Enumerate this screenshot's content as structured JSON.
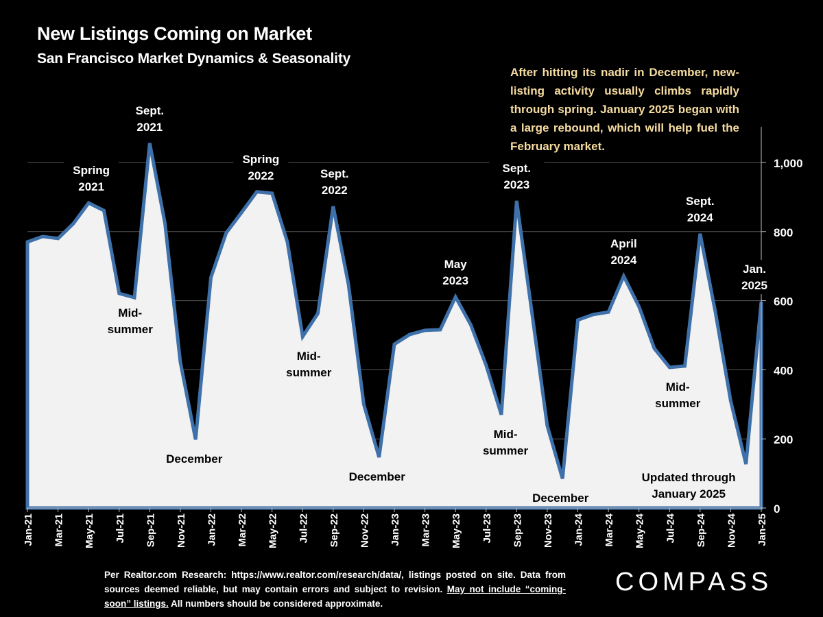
{
  "header": {
    "title": "New Listings Coming on Market",
    "subtitle": "San Francisco Market Dynamics & Seasonality"
  },
  "note": "After hitting its nadir in December, new-listing activity usually climbs rapidly through spring. January 2025 began with a large rebound, which will help fuel the February market.",
  "footnote": {
    "text1": "Per Realtor.com Research:  https://www.realtor.com/research/data/, listings posted on site. Data from sources deemed reliable, but may contain errors and subject to revision. ",
    "underlined": "May not include “coming-soon” listings.",
    "text2": " All numbers should be considered approximate."
  },
  "logo": "COMPASS",
  "colors": {
    "background": "#000000",
    "area_fill": "#f2f2f2",
    "line": "#3e70aa",
    "grid": "#595959",
    "note_text": "#f6dca0"
  },
  "chart_data": {
    "type": "area",
    "title": "New Listings Coming on Market",
    "xlabel": "",
    "ylabel": "",
    "ylim": [
      0,
      1050
    ],
    "yticks": [
      0,
      200,
      400,
      600,
      800,
      1000
    ],
    "ytick_labels": [
      "0",
      "200",
      "400",
      "600",
      "800",
      "1,000"
    ],
    "grid": true,
    "y_axis_position": "right",
    "x": [
      "Jan-21",
      "Feb-21",
      "Mar-21",
      "Apr-21",
      "May-21",
      "Jun-21",
      "Jul-21",
      "Aug-21",
      "Sep-21",
      "Oct-21",
      "Nov-21",
      "Dec-21",
      "Jan-22",
      "Feb-22",
      "Mar-22",
      "Apr-22",
      "May-22",
      "Jun-22",
      "Jul-22",
      "Aug-22",
      "Sep-22",
      "Oct-22",
      "Nov-22",
      "Dec-22",
      "Jan-23",
      "Feb-23",
      "Mar-23",
      "Apr-23",
      "May-23",
      "Jun-23",
      "Jul-23",
      "Aug-23",
      "Sep-23",
      "Oct-23",
      "Nov-23",
      "Dec-23",
      "Jan-24",
      "Feb-24",
      "Mar-24",
      "Apr-24",
      "May-24",
      "Jun-24",
      "Jul-24",
      "Aug-24",
      "Sep-24",
      "Oct-24",
      "Nov-24",
      "Dec-24",
      "Jan-25"
    ],
    "xtick_labels": [
      "Jan-21",
      "Mar-21",
      "May-21",
      "Jul-21",
      "Sep-21",
      "Nov-21",
      "Jan-22",
      "Mar-22",
      "May-22",
      "Jul-22",
      "Sep-22",
      "Nov-22",
      "Jan-23",
      "Mar-23",
      "May-23",
      "Jul-23",
      "Sep-23",
      "Nov-23",
      "Jan-24",
      "Mar-24",
      "May-24",
      "Jul-24",
      "Sep-24",
      "Nov-24",
      "Jan-25"
    ],
    "series": [
      {
        "name": "New Listings",
        "values": [
          770,
          786,
          780,
          823,
          883,
          861,
          621,
          609,
          1056,
          823,
          423,
          198,
          667,
          796,
          855,
          915,
          911,
          770,
          496,
          563,
          873,
          647,
          300,
          147,
          474,
          502,
          514,
          516,
          611,
          530,
          413,
          270,
          889,
          565,
          238,
          85,
          544,
          560,
          567,
          671,
          583,
          462,
          407,
          411,
          794,
          567,
          310,
          127,
          597
        ]
      }
    ],
    "annotations": [
      {
        "lines": [
          "Spring",
          "2021"
        ],
        "at": "May-21",
        "position": "above",
        "color": "white"
      },
      {
        "lines": [
          "Sept.",
          "2021"
        ],
        "at": "Sep-21",
        "position": "above",
        "color": "white"
      },
      {
        "lines": [
          "Mid-",
          "summer"
        ],
        "at": "Jul-21",
        "position": "below",
        "color": "black"
      },
      {
        "lines": [
          "December"
        ],
        "at": "Dec-21",
        "position": "below",
        "color": "black"
      },
      {
        "lines": [
          "Spring",
          "2022"
        ],
        "at": "Apr-22",
        "position": "above",
        "color": "white"
      },
      {
        "lines": [
          "Sept.",
          "2022"
        ],
        "at": "Sep-22",
        "position": "above",
        "color": "white"
      },
      {
        "lines": [
          "Mid-",
          "summer"
        ],
        "at": "Jul-22",
        "position": "below",
        "color": "black"
      },
      {
        "lines": [
          "December"
        ],
        "at": "Dec-22",
        "position": "below",
        "color": "black"
      },
      {
        "lines": [
          "May",
          "2023"
        ],
        "at": "May-23",
        "position": "above",
        "color": "white"
      },
      {
        "lines": [
          "Sept.",
          "2023"
        ],
        "at": "Sep-23",
        "position": "above",
        "color": "white"
      },
      {
        "lines": [
          "Mid-",
          "summer"
        ],
        "at": "Aug-23",
        "position": "below",
        "color": "black"
      },
      {
        "lines": [
          "December"
        ],
        "at": "Dec-23",
        "position": "below",
        "color": "black"
      },
      {
        "lines": [
          "April",
          "2024"
        ],
        "at": "Apr-24",
        "position": "above",
        "color": "white"
      },
      {
        "lines": [
          "Sept.",
          "2024"
        ],
        "at": "Sep-24",
        "position": "above",
        "color": "white"
      },
      {
        "lines": [
          "Mid-",
          "summer"
        ],
        "at": "Jul-24",
        "position": "below",
        "color": "black"
      },
      {
        "lines": [
          "Jan.",
          "2025"
        ],
        "at": "Jan-25",
        "position": "above",
        "color": "white"
      },
      {
        "lines": [
          "Updated through",
          "January 2025"
        ],
        "at": "Oct-24",
        "position": "bottom",
        "color": "black"
      }
    ]
  }
}
